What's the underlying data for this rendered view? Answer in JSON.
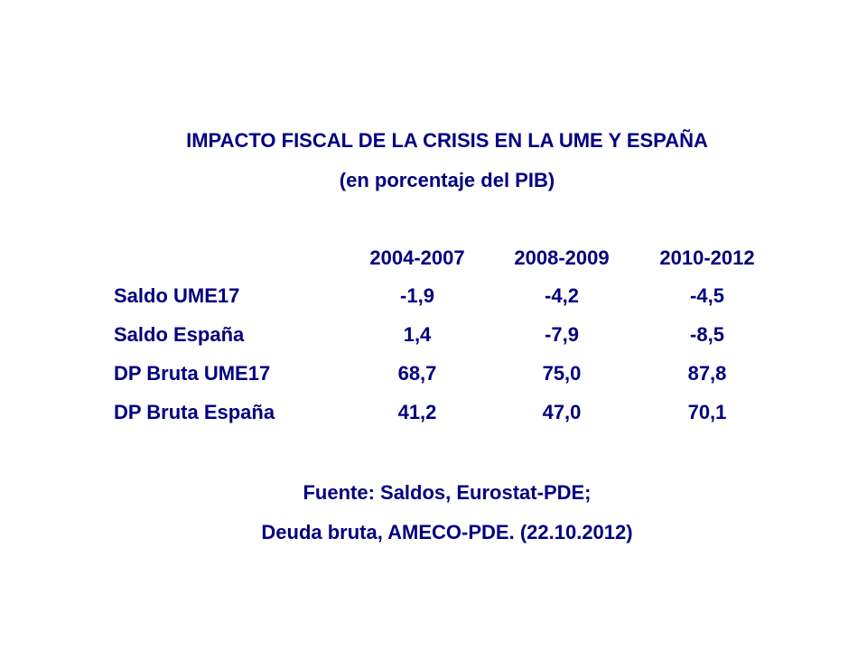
{
  "chart_data": {
    "type": "table",
    "title": "IMPACTO FISCAL DE LA CRISIS EN LA UME Y ESPAÑA",
    "subtitle": "(en porcentaje del PIB)",
    "columns": [
      "2004-2007",
      "2008-2009",
      "2010-2012"
    ],
    "rows": [
      {
        "label": "Saldo UME17",
        "values": [
          "-1,9",
          "-4,2",
          "-4,5"
        ]
      },
      {
        "label": "Saldo España",
        "values": [
          "1,4",
          "-7,9",
          "-8,5"
        ]
      },
      {
        "label": "DP Bruta UME17",
        "values": [
          "68,7",
          "75,0",
          "87,8"
        ]
      },
      {
        "label": "DP Bruta España",
        "values": [
          "41,2",
          "47,0",
          "70,1"
        ]
      }
    ],
    "source_lines": [
      "Fuente: Saldos, Eurostat-PDE;",
      "Deuda bruta, AMECO-PDE. (22.10.2012)"
    ]
  },
  "colors": {
    "text": "#000080",
    "background": "#ffffff"
  }
}
